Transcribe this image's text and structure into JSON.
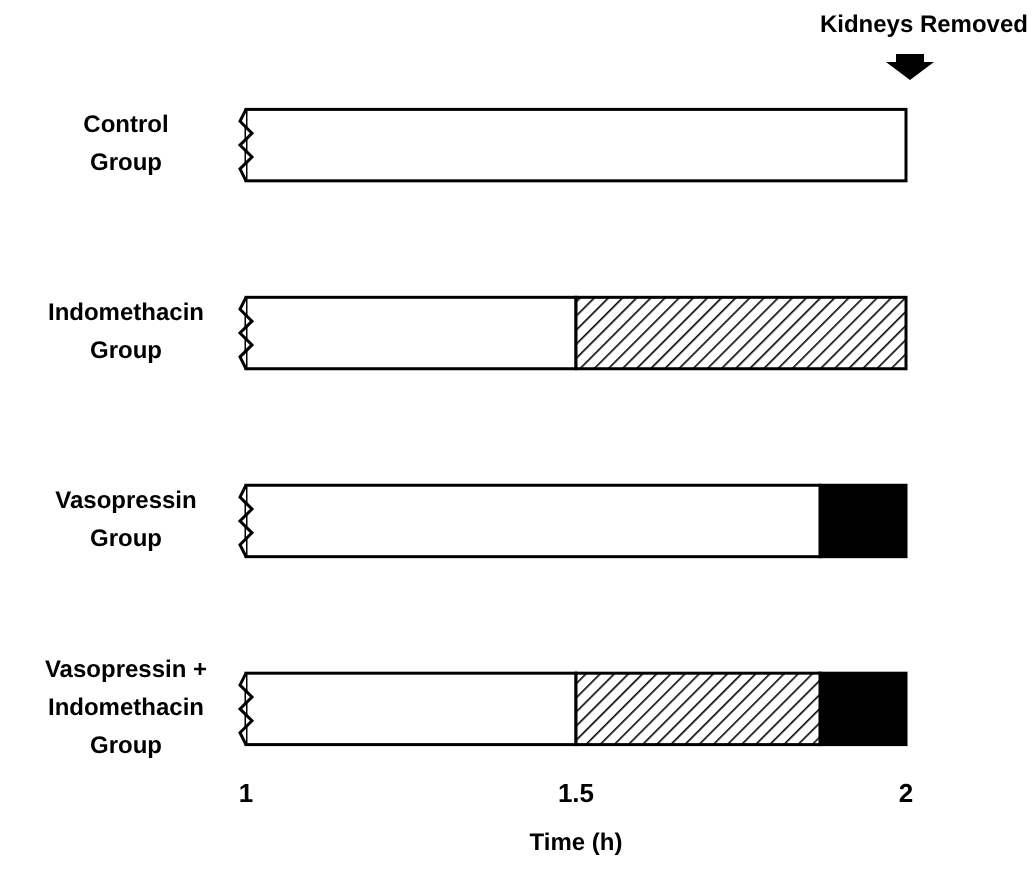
{
  "chart_data": {
    "type": "bar",
    "orientation": "horizontal",
    "categories": [
      "Control\nGroup",
      "Indomethacin\nGroup",
      "Vasopressin\nGroup",
      "Vasopressin +\nIndomethacin\nGroup"
    ],
    "series": [
      {
        "color": "#ffffff",
        "base": [
          1,
          1,
          1,
          1
        ],
        "values": [
          1,
          0.5,
          0.87,
          0.5
        ]
      },
      {
        "color": "#000000",
        "base": [
          null,
          1.5,
          null,
          1.5
        ],
        "values": [
          null,
          0.5,
          null,
          0.37
        ]
      },
      {
        "color": "#000000",
        "base": [
          null,
          null,
          1.87,
          1.87
        ],
        "values": [
          null,
          null,
          0.13,
          0.13
        ]
      }
    ],
    "xlim": [
      1,
      2
    ],
    "xticks": [
      1,
      1.5,
      2
    ],
    "xlabel": "Time (h)",
    "annotations": [
      "Kidneys Removed"
    ]
  }
}
